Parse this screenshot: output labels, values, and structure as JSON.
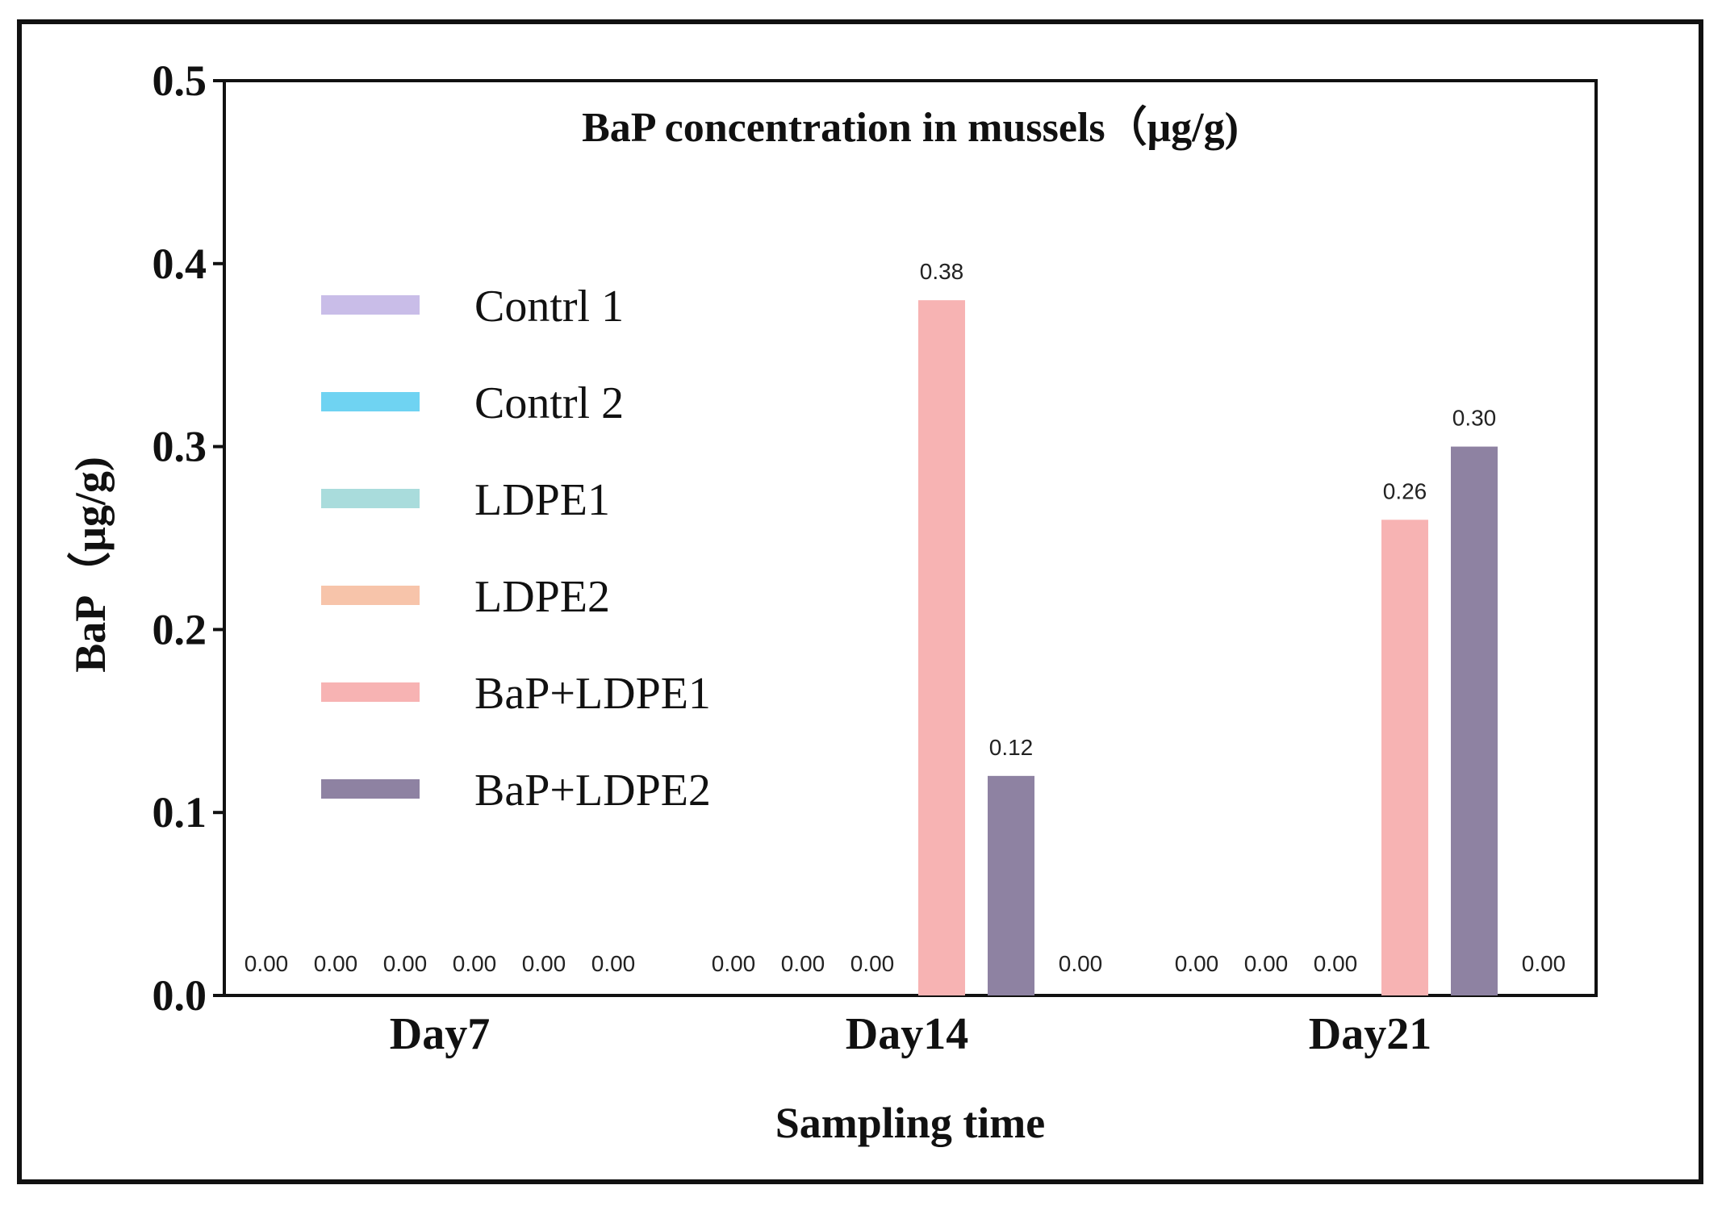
{
  "chart_data": {
    "type": "bar",
    "title": "BaP concentration in mussels（μg/g)",
    "xlabel": "Sampling time",
    "ylabel": "BaP（μg/g)",
    "categories": [
      "Day7",
      "Day14",
      "Day21"
    ],
    "ylim": [
      0,
      0.5
    ],
    "yticks": [
      "0.0",
      "0.1",
      "0.2",
      "0.3",
      "0.4",
      "0.5"
    ],
    "legend_position": "left",
    "grid": false,
    "series": [
      {
        "name": "Contrl 1",
        "color": "#c9bde8",
        "values": [
          0.0,
          null,
          null
        ],
        "labels": [
          "0.00",
          "",
          ""
        ]
      },
      {
        "name": "Contrl 2",
        "color": "#6fd3f2",
        "values": [
          0.0,
          0.0,
          0.0
        ],
        "labels": [
          "0.00",
          "0.00",
          "0.00"
        ]
      },
      {
        "name": "LDPE1",
        "color": "#a9dcdc",
        "values": [
          0.0,
          0.0,
          0.0
        ],
        "labels": [
          "0.00",
          "0.00",
          "0.00"
        ]
      },
      {
        "name": "LDPE2",
        "color": "#f7c4aa",
        "values": [
          0.0,
          0.0,
          0.0
        ],
        "labels": [
          "0.00",
          "0.00",
          "0.00"
        ]
      },
      {
        "name": "BaP+LDPE1",
        "color": "#f7b3b3",
        "values": [
          0.0,
          0.38,
          0.26
        ],
        "labels": [
          "0.00",
          "0.38",
          "0.26"
        ]
      },
      {
        "name": "BaP+LDPE2",
        "color": "#8e82a2",
        "values": [
          0.0,
          0.12,
          0.3
        ],
        "labels": [
          "0.00",
          "0.12",
          "0.30"
        ]
      },
      {
        "name": "",
        "color": "#999999",
        "values": [
          null,
          0.0,
          0.0
        ],
        "labels": [
          "",
          "0.00",
          "0.00"
        ]
      }
    ]
  }
}
